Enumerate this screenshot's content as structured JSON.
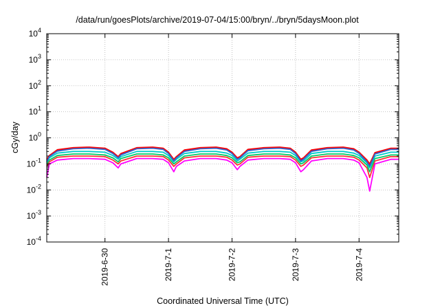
{
  "chart_data": {
    "type": "line",
    "title": "/data/run/goesPlots/archive/2019-07-04/15:00/bryn/../bryn/5daysMoon.plot",
    "xlabel": "Coordinated Universal Time (UTC)",
    "ylabel": "cGy/day",
    "yscale": "log",
    "ylim": [
      0.0001,
      10000
    ],
    "y_ticks": [
      {
        "base": "10",
        "exp": "-4",
        "value": 0.0001
      },
      {
        "base": "10",
        "exp": "-3",
        "value": 0.001
      },
      {
        "base": "10",
        "exp": "-2",
        "value": 0.01
      },
      {
        "base": "10",
        "exp": "-1",
        "value": 0.1
      },
      {
        "base": "10",
        "exp": "0",
        "value": 1
      },
      {
        "base": "10",
        "exp": "1",
        "value": 10
      },
      {
        "base": "10",
        "exp": "2",
        "value": 100
      },
      {
        "base": "10",
        "exp": "3",
        "value": 1000
      },
      {
        "base": "10",
        "exp": "4",
        "value": 10000
      }
    ],
    "xlim": [
      "2019-06-29 02:00",
      "2019-07-04 15:00"
    ],
    "x_ticks": [
      "2019-6-30",
      "2019-7-1",
      "2019-7-2",
      "2019-7-3",
      "2019-7-4"
    ],
    "grid": true,
    "legend": "none",
    "x": [
      "2019-06-29 02:00",
      "2019-06-29 03:00",
      "2019-06-29 06:00",
      "2019-06-29 12:00",
      "2019-06-29 18:00",
      "2019-06-30 00:00",
      "2019-06-30 03:00",
      "2019-06-30 05:00",
      "2019-06-30 06:00",
      "2019-06-30 12:00",
      "2019-06-30 18:00",
      "2019-06-30 22:00",
      "2019-07-01 00:00",
      "2019-07-01 02:00",
      "2019-07-01 03:00",
      "2019-07-01 06:00",
      "2019-07-01 12:00",
      "2019-07-01 18:00",
      "2019-07-01 22:00",
      "2019-07-02 00:00",
      "2019-07-02 02:00",
      "2019-07-02 03:00",
      "2019-07-02 06:00",
      "2019-07-02 12:00",
      "2019-07-02 18:00",
      "2019-07-02 22:00",
      "2019-07-03 00:00",
      "2019-07-03 02:00",
      "2019-07-03 03:00",
      "2019-07-03 06:00",
      "2019-07-03 12:00",
      "2019-07-03 18:00",
      "2019-07-03 22:00",
      "2019-07-04 00:00",
      "2019-07-04 03:00",
      "2019-07-04 04:00",
      "2019-07-04 06:00",
      "2019-07-04 12:00",
      "2019-07-04 15:00"
    ],
    "series": [
      {
        "color": "#ff00ff",
        "values": [
          0.03,
          0.1,
          0.14,
          0.16,
          0.16,
          0.15,
          0.11,
          0.07,
          0.1,
          0.16,
          0.16,
          0.15,
          0.11,
          0.05,
          0.08,
          0.13,
          0.16,
          0.16,
          0.14,
          0.11,
          0.06,
          0.08,
          0.14,
          0.16,
          0.16,
          0.15,
          0.11,
          0.05,
          0.06,
          0.13,
          0.16,
          0.16,
          0.14,
          0.11,
          0.03,
          0.009,
          0.1,
          0.15,
          0.15
        ]
      },
      {
        "color": "#ff3333",
        "values": [
          0.08,
          0.12,
          0.18,
          0.2,
          0.2,
          0.19,
          0.14,
          0.1,
          0.13,
          0.2,
          0.2,
          0.19,
          0.14,
          0.08,
          0.1,
          0.17,
          0.2,
          0.2,
          0.18,
          0.14,
          0.09,
          0.1,
          0.18,
          0.2,
          0.2,
          0.19,
          0.14,
          0.08,
          0.09,
          0.17,
          0.2,
          0.2,
          0.18,
          0.14,
          0.07,
          0.03,
          0.13,
          0.19,
          0.19
        ]
      },
      {
        "color": "#00cc66",
        "values": [
          0.1,
          0.14,
          0.21,
          0.24,
          0.24,
          0.22,
          0.17,
          0.12,
          0.16,
          0.24,
          0.24,
          0.22,
          0.17,
          0.1,
          0.12,
          0.2,
          0.24,
          0.24,
          0.21,
          0.17,
          0.11,
          0.12,
          0.21,
          0.24,
          0.24,
          0.22,
          0.17,
          0.1,
          0.11,
          0.2,
          0.24,
          0.24,
          0.21,
          0.17,
          0.09,
          0.05,
          0.16,
          0.22,
          0.22
        ]
      },
      {
        "color": "#00cccc",
        "values": [
          0.12,
          0.17,
          0.26,
          0.3,
          0.3,
          0.28,
          0.21,
          0.15,
          0.19,
          0.3,
          0.3,
          0.28,
          0.21,
          0.12,
          0.15,
          0.25,
          0.3,
          0.3,
          0.26,
          0.21,
          0.13,
          0.15,
          0.26,
          0.3,
          0.3,
          0.28,
          0.21,
          0.12,
          0.13,
          0.25,
          0.3,
          0.3,
          0.26,
          0.21,
          0.11,
          0.07,
          0.2,
          0.28,
          0.28
        ]
      },
      {
        "color": "#0000ff",
        "values": [
          0.14,
          0.2,
          0.33,
          0.4,
          0.42,
          0.38,
          0.27,
          0.18,
          0.24,
          0.4,
          0.42,
          0.38,
          0.27,
          0.14,
          0.18,
          0.32,
          0.4,
          0.42,
          0.36,
          0.27,
          0.16,
          0.18,
          0.34,
          0.4,
          0.42,
          0.38,
          0.27,
          0.14,
          0.16,
          0.32,
          0.4,
          0.42,
          0.36,
          0.27,
          0.13,
          0.09,
          0.26,
          0.38,
          0.38
        ]
      },
      {
        "color": "#ff0000",
        "values": [
          0.15,
          0.21,
          0.35,
          0.42,
          0.44,
          0.4,
          0.28,
          0.19,
          0.25,
          0.42,
          0.44,
          0.4,
          0.28,
          0.15,
          0.19,
          0.34,
          0.42,
          0.44,
          0.38,
          0.28,
          0.17,
          0.19,
          0.36,
          0.42,
          0.44,
          0.4,
          0.28,
          0.15,
          0.17,
          0.34,
          0.42,
          0.44,
          0.38,
          0.28,
          0.14,
          0.1,
          0.27,
          0.4,
          0.4
        ]
      },
      {
        "color": "#3366cc",
        "values": [
          0.12,
          0.19,
          0.31,
          0.38,
          0.4,
          0.36,
          0.25,
          0.17,
          0.22,
          0.38,
          0.4,
          0.36,
          0.25,
          0.13,
          0.17,
          0.3,
          0.38,
          0.4,
          0.34,
          0.25,
          0.15,
          0.17,
          0.32,
          0.38,
          0.4,
          0.36,
          0.25,
          0.13,
          0.15,
          0.3,
          0.38,
          0.4,
          0.34,
          0.25,
          0.12,
          0.08,
          0.24,
          0.36,
          0.36
        ]
      }
    ]
  }
}
